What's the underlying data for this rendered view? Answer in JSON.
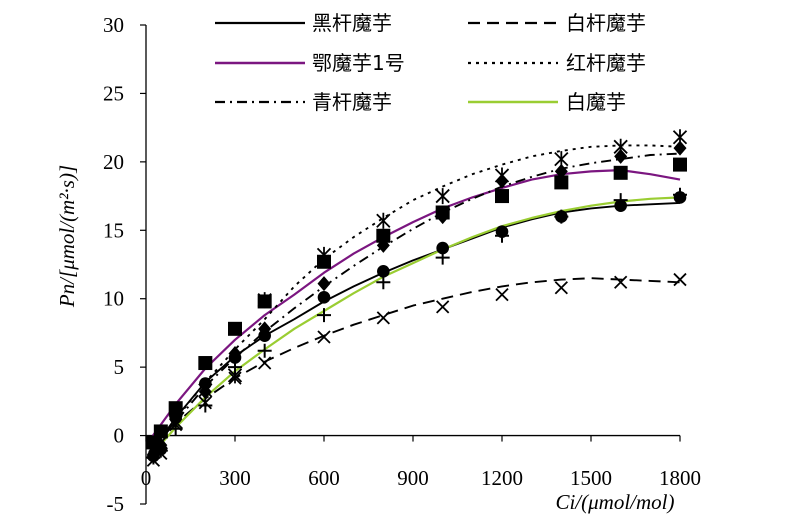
{
  "chart_data": {
    "type": "line",
    "xlabel": "Ci/(μmol/mol)",
    "ylabel": "Pn/[μmol/(m²·s)]",
    "xlim": [
      0,
      1800
    ],
    "ylim": [
      -5,
      30
    ],
    "x_ticks": [
      0,
      300,
      600,
      900,
      1200,
      1500,
      1800
    ],
    "y_ticks": [
      -5,
      0,
      5,
      10,
      15,
      20,
      25,
      30
    ],
    "grid": false,
    "legend_position": "top",
    "series": [
      {
        "name": "黑杆魔芋",
        "color": "#000000",
        "line_style": "solid",
        "marker": "circle",
        "points": [
          [
            25,
            -1.5
          ],
          [
            50,
            -1.0
          ],
          [
            100,
            1.3
          ],
          [
            200,
            3.8
          ],
          [
            300,
            5.7
          ],
          [
            400,
            7.3
          ],
          [
            600,
            10.1
          ],
          [
            800,
            12.0
          ],
          [
            1000,
            13.7
          ],
          [
            1200,
            14.9
          ],
          [
            1400,
            16.0
          ],
          [
            1600,
            16.8
          ],
          [
            1800,
            17.4
          ]
        ],
        "curve": [
          [
            10,
            -1.4
          ],
          [
            100,
            1.3
          ],
          [
            200,
            3.9
          ],
          [
            300,
            5.8
          ],
          [
            400,
            7.3
          ],
          [
            500,
            8.5
          ],
          [
            600,
            9.8
          ],
          [
            700,
            10.9
          ],
          [
            800,
            11.9
          ],
          [
            900,
            12.8
          ],
          [
            1000,
            13.6
          ],
          [
            1100,
            14.4
          ],
          [
            1200,
            15.2
          ],
          [
            1300,
            15.8
          ],
          [
            1400,
            16.3
          ],
          [
            1500,
            16.6
          ],
          [
            1600,
            16.8
          ],
          [
            1700,
            16.9
          ],
          [
            1800,
            17.0
          ]
        ]
      },
      {
        "name": "白杆魔芋",
        "color": "#000000",
        "line_style": "dashed",
        "marker": "x",
        "points": [
          [
            25,
            -1.8
          ],
          [
            50,
            -1.3
          ],
          [
            100,
            0.8
          ],
          [
            200,
            2.4
          ],
          [
            300,
            4.2
          ],
          [
            400,
            5.3
          ],
          [
            600,
            7.2
          ],
          [
            800,
            8.6
          ],
          [
            1000,
            9.4
          ],
          [
            1200,
            10.3
          ],
          [
            1400,
            10.8
          ],
          [
            1600,
            11.2
          ],
          [
            1800,
            11.4
          ]
        ],
        "curve": [
          [
            10,
            -1.8
          ],
          [
            100,
            0.9
          ],
          [
            200,
            2.7
          ],
          [
            300,
            4.2
          ],
          [
            400,
            5.4
          ],
          [
            500,
            6.4
          ],
          [
            600,
            7.3
          ],
          [
            700,
            8.1
          ],
          [
            800,
            8.8
          ],
          [
            900,
            9.5
          ],
          [
            1000,
            10.0
          ],
          [
            1100,
            10.5
          ],
          [
            1200,
            10.9
          ],
          [
            1300,
            11.2
          ],
          [
            1400,
            11.4
          ],
          [
            1500,
            11.5
          ],
          [
            1600,
            11.4
          ],
          [
            1700,
            11.3
          ],
          [
            1800,
            11.2
          ]
        ]
      },
      {
        "name": "鄂魔芋1号",
        "color": "#7B1680",
        "line_style": "solid",
        "marker": "square",
        "points": [
          [
            25,
            -0.5
          ],
          [
            50,
            0.3
          ],
          [
            100,
            2.0
          ],
          [
            200,
            5.3
          ],
          [
            300,
            7.8
          ],
          [
            400,
            9.8
          ],
          [
            600,
            12.7
          ],
          [
            800,
            14.6
          ],
          [
            1000,
            16.3
          ],
          [
            1200,
            17.5
          ],
          [
            1400,
            18.5
          ],
          [
            1600,
            19.2
          ],
          [
            1800,
            19.8
          ]
        ],
        "curve": [
          [
            10,
            -0.4
          ],
          [
            100,
            2.3
          ],
          [
            200,
            4.9
          ],
          [
            300,
            7.0
          ],
          [
            400,
            8.8
          ],
          [
            500,
            10.3
          ],
          [
            600,
            11.9
          ],
          [
            700,
            13.3
          ],
          [
            800,
            14.5
          ],
          [
            900,
            15.6
          ],
          [
            1000,
            16.6
          ],
          [
            1100,
            17.4
          ],
          [
            1200,
            18.1
          ],
          [
            1300,
            18.7
          ],
          [
            1400,
            19.1
          ],
          [
            1500,
            19.3
          ],
          [
            1600,
            19.4
          ],
          [
            1700,
            19.1
          ],
          [
            1800,
            18.7
          ]
        ]
      },
      {
        "name": "红杆魔芋",
        "color": "#000000",
        "line_style": "dotted",
        "marker": "asterisk",
        "points": [
          [
            25,
            -1.2
          ],
          [
            50,
            -0.5
          ],
          [
            100,
            1.0
          ],
          [
            200,
            3.3
          ],
          [
            300,
            4.4
          ],
          [
            400,
            9.9
          ],
          [
            600,
            13.2
          ],
          [
            800,
            15.7
          ],
          [
            1000,
            17.5
          ],
          [
            1200,
            19.0
          ],
          [
            1400,
            20.2
          ],
          [
            1600,
            21.1
          ],
          [
            1800,
            21.8
          ]
        ],
        "curve": [
          [
            10,
            -1.2
          ],
          [
            100,
            1.2
          ],
          [
            200,
            3.9
          ],
          [
            300,
            6.3
          ],
          [
            400,
            8.5
          ],
          [
            500,
            10.9
          ],
          [
            600,
            12.9
          ],
          [
            700,
            14.5
          ],
          [
            800,
            15.9
          ],
          [
            900,
            17.2
          ],
          [
            1000,
            18.2
          ],
          [
            1100,
            19.1
          ],
          [
            1200,
            19.8
          ],
          [
            1300,
            20.4
          ],
          [
            1400,
            20.8
          ],
          [
            1500,
            21.1
          ],
          [
            1600,
            21.2
          ],
          [
            1700,
            21.2
          ],
          [
            1800,
            21.1
          ]
        ]
      },
      {
        "name": "青杆魔芋",
        "color": "#000000",
        "line_style": "dash-dot",
        "marker": "diamond",
        "points": [
          [
            25,
            -1.4
          ],
          [
            50,
            -0.7
          ],
          [
            100,
            1.5
          ],
          [
            200,
            3.2
          ],
          [
            300,
            6.0
          ],
          [
            400,
            7.8
          ],
          [
            600,
            11.1
          ],
          [
            800,
            13.9
          ],
          [
            1000,
            16.0
          ],
          [
            1200,
            18.6
          ],
          [
            1400,
            19.3
          ],
          [
            1600,
            20.4
          ],
          [
            1800,
            21.0
          ]
        ],
        "curve": [
          [
            10,
            -1.3
          ],
          [
            100,
            1.0
          ],
          [
            200,
            3.6
          ],
          [
            300,
            5.7
          ],
          [
            400,
            7.6
          ],
          [
            500,
            9.3
          ],
          [
            600,
            10.9
          ],
          [
            700,
            12.4
          ],
          [
            800,
            13.8
          ],
          [
            900,
            15.1
          ],
          [
            1000,
            16.3
          ],
          [
            1100,
            17.3
          ],
          [
            1200,
            18.2
          ],
          [
            1300,
            18.9
          ],
          [
            1400,
            19.5
          ],
          [
            1500,
            19.9
          ],
          [
            1600,
            20.2
          ],
          [
            1700,
            20.5
          ],
          [
            1800,
            20.6
          ]
        ]
      },
      {
        "name": "白魔芋",
        "color": "#9ACD32",
        "line_style": "solid",
        "marker": "plus",
        "points": [
          [
            25,
            -1.6
          ],
          [
            50,
            -1.1
          ],
          [
            100,
            0.5
          ],
          [
            200,
            2.2
          ],
          [
            300,
            5.0
          ],
          [
            400,
            6.2
          ],
          [
            600,
            8.8
          ],
          [
            800,
            11.2
          ],
          [
            1000,
            13.0
          ],
          [
            1200,
            14.6
          ],
          [
            1400,
            16.0
          ],
          [
            1600,
            17.2
          ],
          [
            1800,
            17.6
          ]
        ],
        "curve": [
          [
            10,
            -1.6
          ],
          [
            100,
            0.6
          ],
          [
            200,
            2.8
          ],
          [
            300,
            4.7
          ],
          [
            400,
            6.3
          ],
          [
            500,
            7.8
          ],
          [
            600,
            9.1
          ],
          [
            700,
            10.4
          ],
          [
            800,
            11.6
          ],
          [
            900,
            12.6
          ],
          [
            1000,
            13.6
          ],
          [
            1100,
            14.5
          ],
          [
            1200,
            15.3
          ],
          [
            1300,
            15.9
          ],
          [
            1400,
            16.4
          ],
          [
            1500,
            16.8
          ],
          [
            1600,
            17.1
          ],
          [
            1700,
            17.3
          ],
          [
            1800,
            17.4
          ]
        ]
      }
    ]
  }
}
